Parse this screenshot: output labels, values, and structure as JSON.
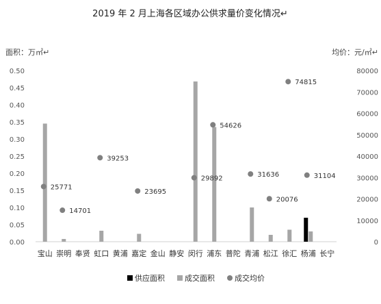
{
  "chart_data": {
    "type": "bar",
    "title": "2019 年 2 月上海各区域办公供求量价变化情况↵",
    "y_left_label": "面积：万㎡↵",
    "y_right_label": "均价：元/㎡↵",
    "y_left_lim": [
      0,
      0.5
    ],
    "y_left_ticks": [
      "0.00",
      "0.05",
      "0.10",
      "0.15",
      "0.20",
      "0.25",
      "0.30",
      "0.35",
      "0.40",
      "0.45",
      "0.50"
    ],
    "y_right_lim": [
      0,
      80000
    ],
    "y_right_ticks": [
      "0",
      "10000",
      "20000",
      "30000",
      "40000",
      "50000",
      "60000",
      "70000",
      "80000"
    ],
    "categories": [
      "宝山",
      "崇明",
      "奉贤",
      "虹口",
      "黄浦",
      "嘉定",
      "金山",
      "静安",
      "闵行",
      "浦东",
      "普陀",
      "青浦",
      "松江",
      "徐汇",
      "杨浦",
      "长宁"
    ],
    "series": [
      {
        "name": "供应面积",
        "kind": "bar",
        "axis": "left",
        "color": "#000000",
        "values": [
          0,
          0,
          0,
          0,
          0,
          0,
          0,
          0,
          0,
          0,
          0,
          0,
          0,
          0,
          0.07,
          0
        ]
      },
      {
        "name": "成交面积",
        "kind": "bar",
        "axis": "left",
        "color": "#a6a6a6",
        "values": [
          0.345,
          0.008,
          0,
          0.032,
          0,
          0.023,
          0,
          0,
          0.468,
          0.335,
          0,
          0.1,
          0.02,
          0.035,
          0.03,
          0
        ]
      },
      {
        "name": "成交均价",
        "kind": "scatter",
        "axis": "right",
        "color": "#808080",
        "values": [
          25771,
          14701,
          null,
          39253,
          null,
          23695,
          null,
          null,
          29892,
          54626,
          null,
          31636,
          20076,
          74815,
          31104,
          null
        ],
        "labels": [
          "25771",
          "14701",
          "",
          "39253",
          "",
          "23695",
          "",
          "",
          "29892",
          "54626",
          "",
          "31636",
          "20076",
          "74815",
          "31104",
          ""
        ]
      }
    ],
    "grid": false,
    "legend_position": "bottom"
  }
}
